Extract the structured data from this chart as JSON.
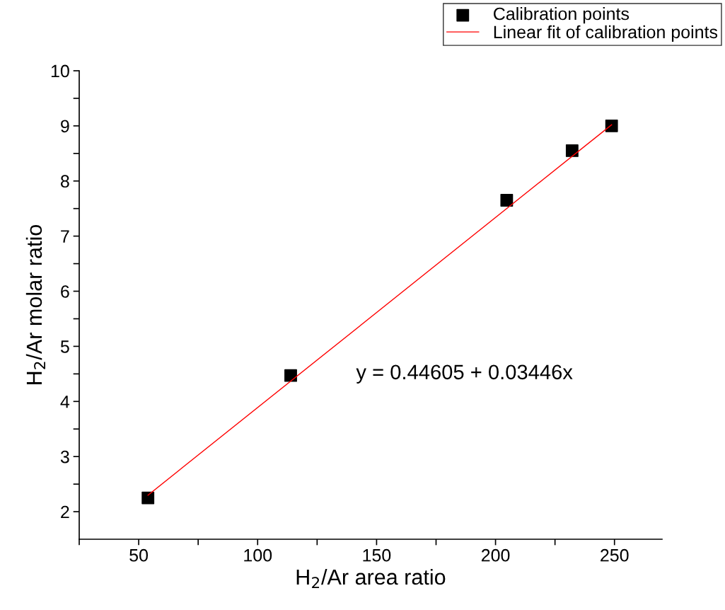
{
  "chart_data": {
    "type": "scatter",
    "xlabel": "H$_{2}$/Ar area ratio",
    "ylabel": "H$_{2}$/Ar molar ratio",
    "series": [
      {
        "name": "Calibration points",
        "color": "#000000",
        "marker": "square",
        "x": [
          53.9,
          113.9,
          204.7,
          232.2,
          248.8
        ],
        "values": [
          2.25,
          4.47,
          7.65,
          8.55,
          9.0
        ]
      },
      {
        "name": "Linear fit of calibration points",
        "type": "line",
        "color": "#ff0000",
        "marker": "none",
        "line_style": "solid",
        "x": [
          53.9,
          248.8
        ],
        "values": [
          2.3,
          9.02
        ]
      }
    ],
    "annotations": [
      "y = 0.44605 + 0.03446x"
    ],
    "xlim": [
      25,
      270
    ],
    "ylim": [
      1.5,
      10
    ],
    "xticks": [
      {
        "value": 25,
        "label": null
      },
      50,
      {
        "value": 75,
        "label": null
      },
      100,
      {
        "value": 125,
        "label": null
      },
      150,
      {
        "value": 175,
        "label": null
      },
      200,
      {
        "value": 225,
        "label": null
      },
      250
    ],
    "yticks": [
      2,
      {
        "value": 2.5,
        "label": null
      },
      3,
      {
        "value": 3.5,
        "label": null
      },
      4,
      {
        "value": 4.5,
        "label": null
      },
      5,
      {
        "value": 5.5,
        "label": null
      },
      6,
      {
        "value": 6.5,
        "label": null
      },
      7,
      {
        "value": 7.5,
        "label": null
      },
      8,
      {
        "value": 8.5,
        "label": null
      },
      9,
      {
        "value": 9.5,
        "label": null
      },
      10
    ],
    "grid": false,
    "legend": "top right"
  }
}
